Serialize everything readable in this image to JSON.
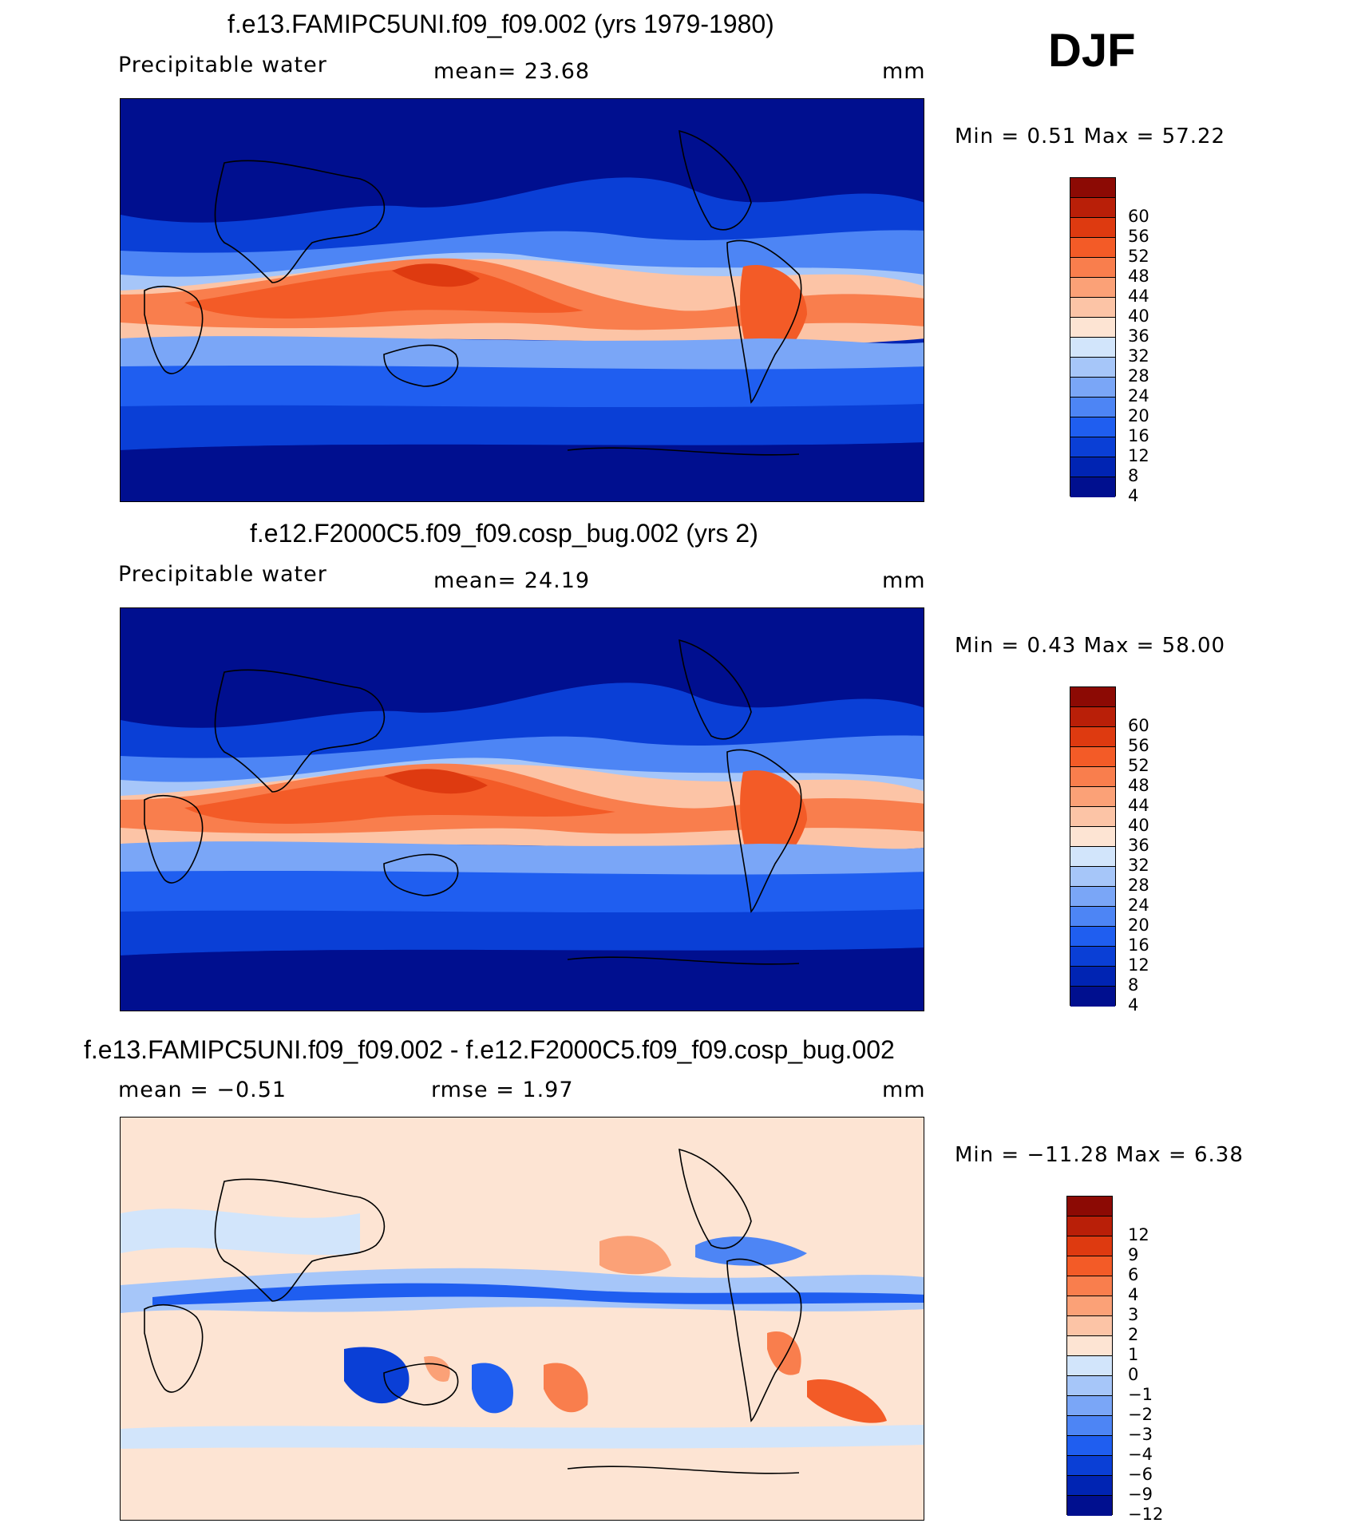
{
  "season": "DJF",
  "panels": [
    {
      "title": "f.e13.FAMIPC5UNI.f09_f09.002 (yrs 1979-1980)",
      "left_label": "Precipitable water",
      "mid_label": "mean=   23.68",
      "units": "mm",
      "minmax": "Min =     0.51  Max =    57.22",
      "colors": [
        "#000f8f",
        "#0024b3",
        "#0a3fd6",
        "#1f5ef0",
        "#4d85f5",
        "#7aa6f7",
        "#a6c6f9",
        "#d2e5fb",
        "#fde4d3",
        "#fcc4a6",
        "#fba177",
        "#f97e4d",
        "#f35b27",
        "#de3a10",
        "#b91f08",
        "#8c0a04"
      ],
      "ticks": [
        "4",
        "8",
        "12",
        "16",
        "20",
        "24",
        "28",
        "32",
        "36",
        "40",
        "44",
        "48",
        "52",
        "56",
        "60"
      ]
    },
    {
      "title": "f.e12.F2000C5.f09_f09.cosp_bug.002 (yrs 2)",
      "left_label": "Precipitable water",
      "mid_label": "mean=   24.19",
      "units": "mm",
      "minmax": "Min =     0.43  Max =    58.00",
      "colors": [
        "#000f8f",
        "#0024b3",
        "#0a3fd6",
        "#1f5ef0",
        "#4d85f5",
        "#7aa6f7",
        "#a6c6f9",
        "#d2e5fb",
        "#fde4d3",
        "#fcc4a6",
        "#fba177",
        "#f97e4d",
        "#f35b27",
        "#de3a10",
        "#b91f08",
        "#8c0a04"
      ],
      "ticks": [
        "4",
        "8",
        "12",
        "16",
        "20",
        "24",
        "28",
        "32",
        "36",
        "40",
        "44",
        "48",
        "52",
        "56",
        "60"
      ]
    },
    {
      "title": "f.e13.FAMIPC5UNI.f09_f09.002 - f.e12.F2000C5.f09_f09.cosp_bug.002",
      "left_label": "mean =   −0.51",
      "mid_label": "rmse =     1.97",
      "units": "mm",
      "minmax": "Min = −11.28  Max =     6.38",
      "colors": [
        "#000f8f",
        "#0024b3",
        "#0a3fd6",
        "#1f5ef0",
        "#4d85f5",
        "#7aa6f7",
        "#a6c6f9",
        "#d2e5fb",
        "#fde4d3",
        "#fcc4a6",
        "#fba177",
        "#f97e4d",
        "#f35b27",
        "#de3a10",
        "#b91f08",
        "#8c0a04"
      ],
      "ticks": [
        "−12",
        "−9",
        "−6",
        "−4",
        "−3",
        "−2",
        "−1",
        "0",
        "1",
        "2",
        "3",
        "4",
        "6",
        "9",
        "12"
      ]
    }
  ]
}
